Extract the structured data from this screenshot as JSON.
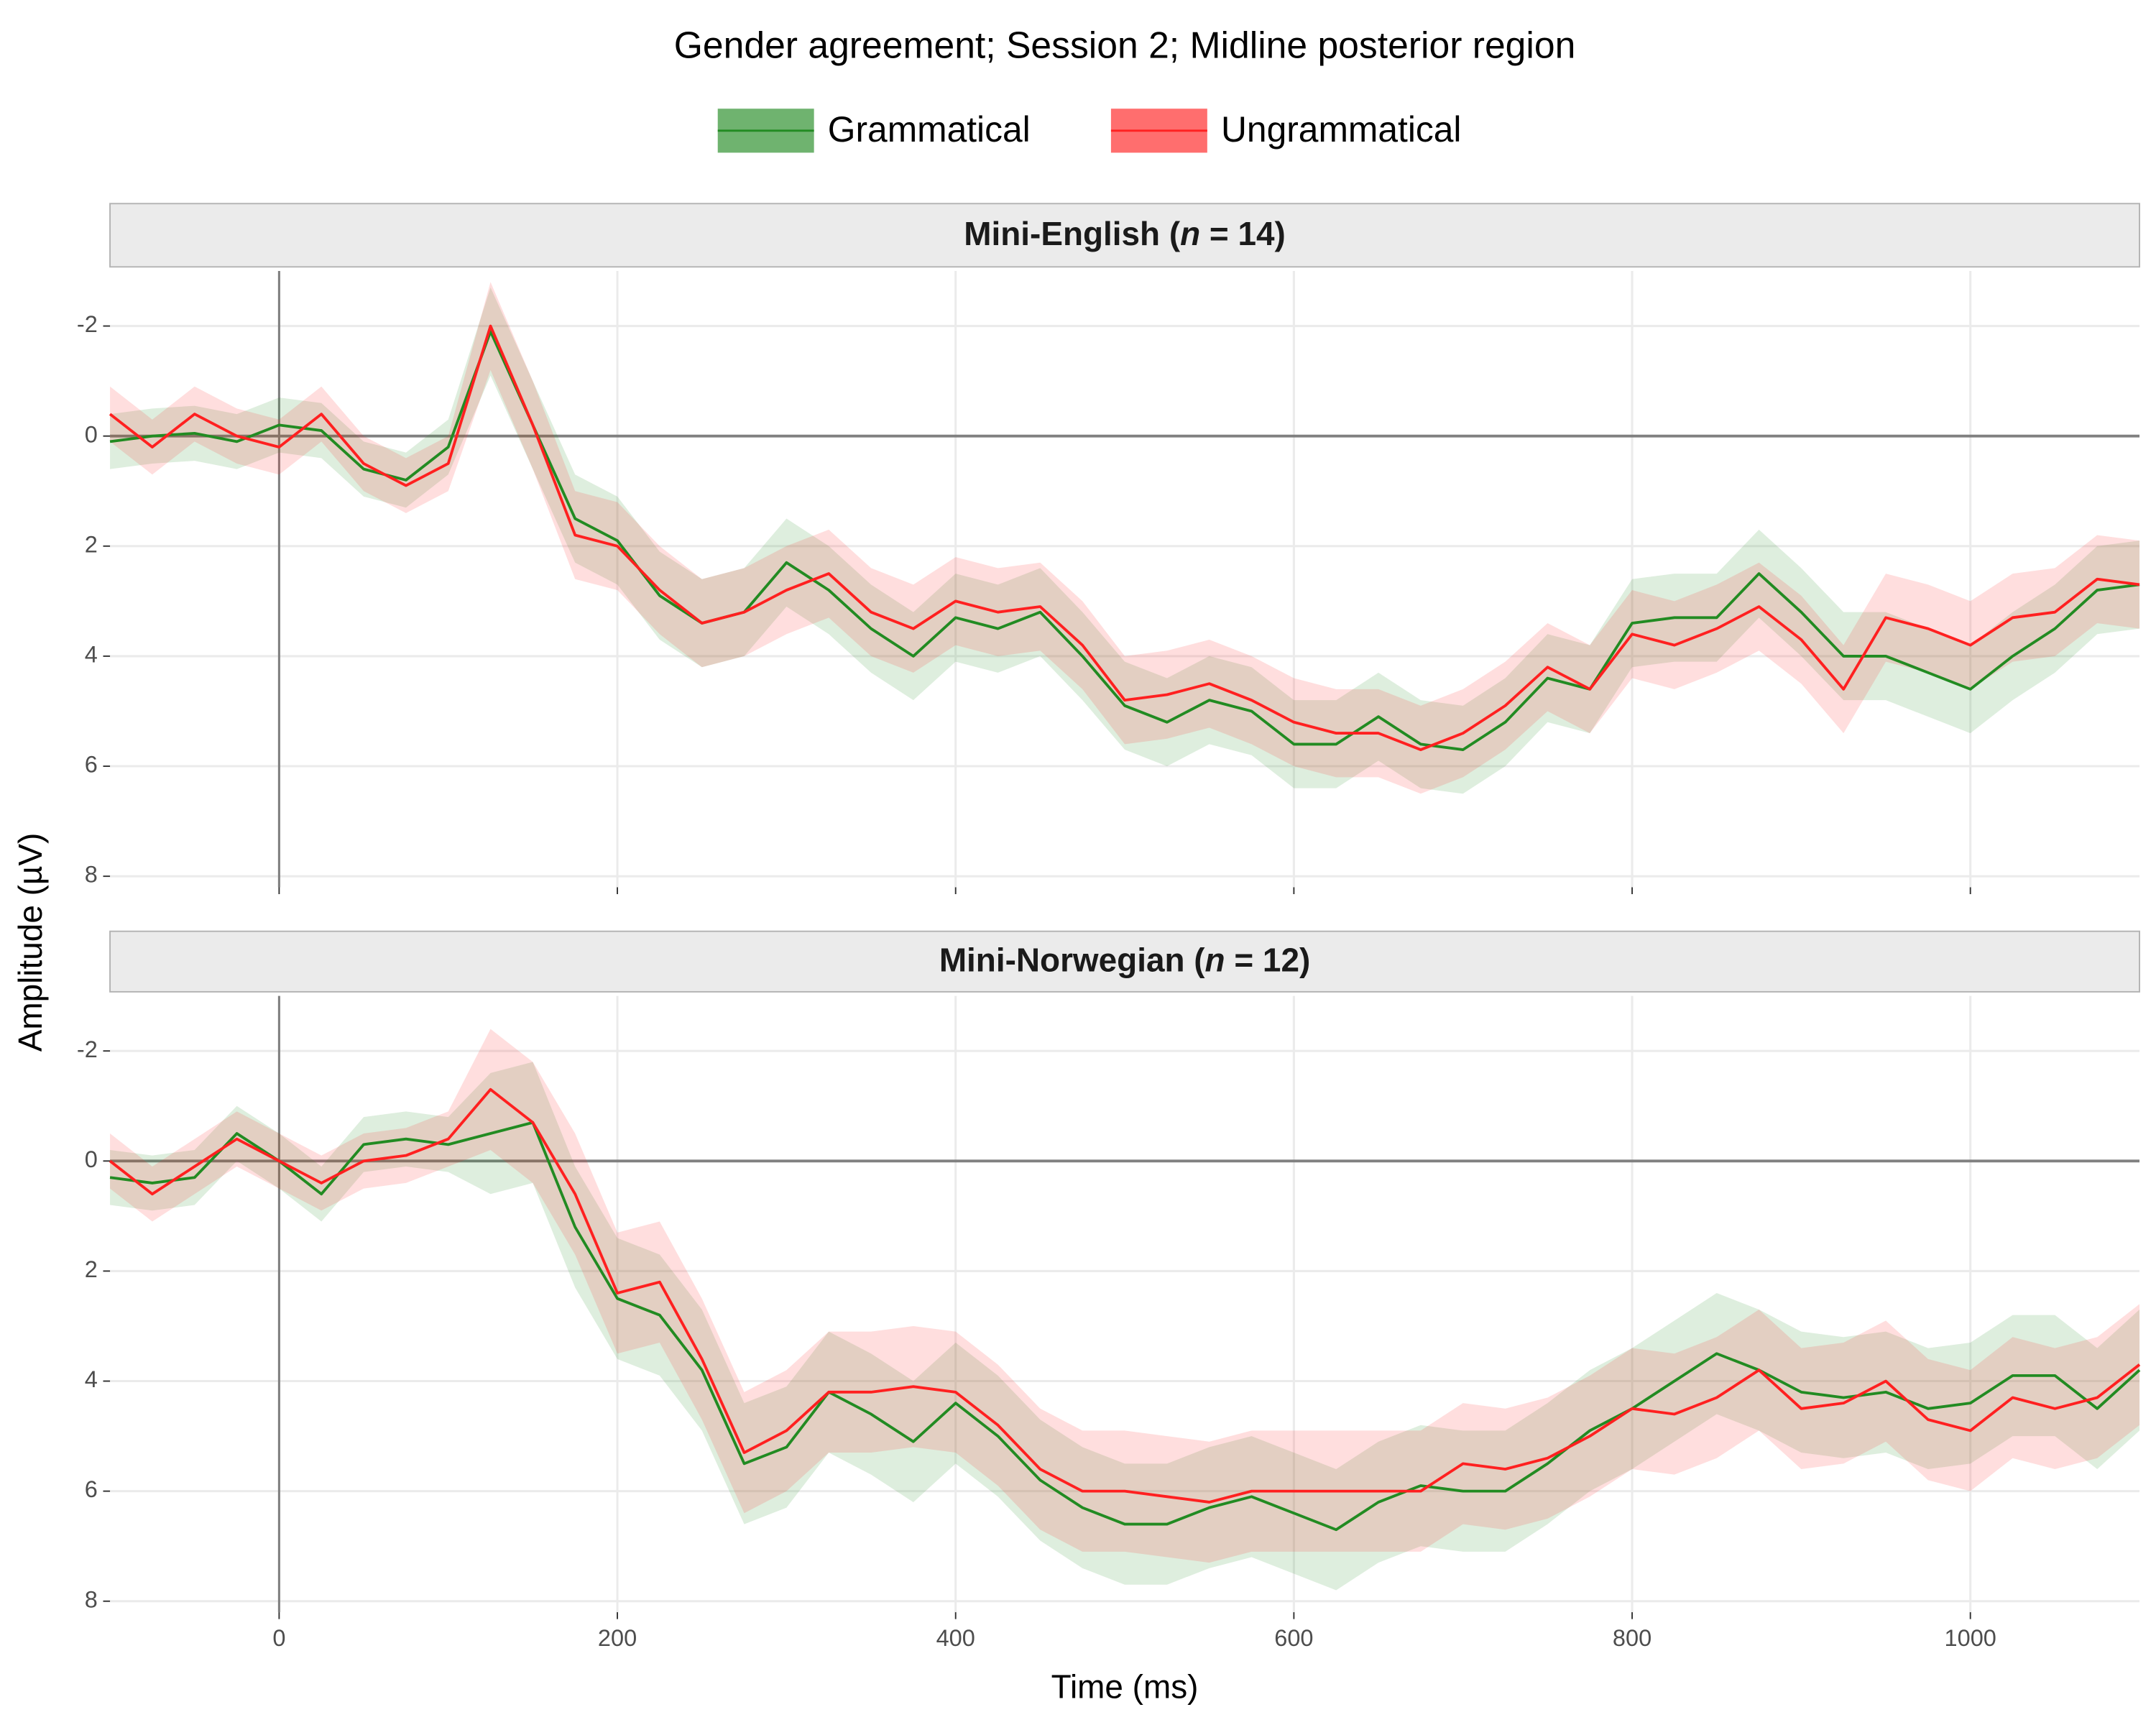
{
  "title": "Gender agreement; Session 2; Midline posterior region",
  "x_label": "Time (ms)",
  "y_label": "Amplitude (µV)",
  "legend": [
    {
      "name": "Grammatical",
      "color": "#228B22"
    },
    {
      "name": "Ungrammatical",
      "color": "#FF2020"
    }
  ],
  "chart_data": [
    {
      "type": "line_ribbon",
      "strip": "Mini-English (n = 14)",
      "xlim": [
        -100,
        1100
      ],
      "xticks": [
        0,
        200,
        400,
        600,
        800,
        1000
      ],
      "ylim": [
        -3,
        8.2
      ],
      "yticks": [
        -2,
        0,
        2,
        4,
        6,
        8
      ],
      "y_reversed": true,
      "grid": true,
      "hline": 0,
      "vline": 0,
      "x": [
        -100,
        -75,
        -50,
        -25,
        0,
        25,
        50,
        75,
        100,
        125,
        150,
        175,
        200,
        225,
        250,
        275,
        300,
        325,
        350,
        375,
        400,
        425,
        450,
        475,
        500,
        525,
        550,
        575,
        600,
        625,
        650,
        675,
        700,
        725,
        750,
        775,
        800,
        825,
        850,
        875,
        900,
        925,
        950,
        975,
        1000,
        1025,
        1050,
        1075,
        1100
      ],
      "series": [
        {
          "values": [
            0.1,
            0.0,
            -0.05,
            0.1,
            -0.2,
            -0.1,
            0.6,
            0.8,
            0.2,
            -1.9,
            -0.2,
            1.5,
            1.9,
            2.9,
            3.4,
            3.2,
            2.3,
            2.8,
            3.5,
            4.0,
            3.3,
            3.5,
            3.2,
            4.0,
            4.9,
            5.2,
            4.8,
            5.0,
            5.6,
            5.6,
            5.1,
            5.6,
            5.7,
            5.2,
            4.4,
            4.6,
            3.4,
            3.3,
            3.3,
            2.5,
            3.2,
            4.0,
            4.0,
            4.3,
            4.6,
            4.0,
            3.5,
            2.8,
            2.7
          ],
          "ci_low": [
            -0.4,
            -0.5,
            -0.55,
            -0.4,
            -0.7,
            -0.6,
            0.1,
            0.3,
            -0.3,
            -2.7,
            -1.0,
            0.7,
            1.1,
            2.1,
            2.6,
            2.4,
            1.5,
            2.0,
            2.7,
            3.2,
            2.5,
            2.7,
            2.4,
            3.2,
            4.1,
            4.4,
            4.0,
            4.2,
            4.8,
            4.8,
            4.3,
            4.8,
            4.9,
            4.4,
            3.6,
            3.8,
            2.6,
            2.5,
            2.5,
            1.7,
            2.4,
            3.2,
            3.2,
            3.5,
            3.8,
            3.2,
            2.7,
            2.0,
            1.9
          ],
          "ci_high": [
            0.6,
            0.5,
            0.45,
            0.6,
            0.3,
            0.4,
            1.1,
            1.3,
            0.7,
            -1.1,
            0.6,
            2.3,
            2.7,
            3.7,
            4.2,
            4.0,
            3.1,
            3.6,
            4.3,
            4.8,
            4.1,
            4.3,
            4.0,
            4.8,
            5.7,
            6.0,
            5.6,
            5.8,
            6.4,
            6.4,
            5.9,
            6.4,
            6.5,
            6.0,
            5.2,
            5.4,
            4.2,
            4.1,
            4.1,
            3.3,
            4.0,
            4.8,
            4.8,
            5.1,
            5.4,
            4.8,
            4.3,
            3.6,
            3.5
          ]
        },
        {
          "values": [
            -0.4,
            0.2,
            -0.4,
            0.0,
            0.2,
            -0.4,
            0.5,
            0.9,
            0.5,
            -2.0,
            -0.2,
            1.8,
            2.0,
            2.8,
            3.4,
            3.2,
            2.8,
            2.5,
            3.2,
            3.5,
            3.0,
            3.2,
            3.1,
            3.8,
            4.8,
            4.7,
            4.5,
            4.8,
            5.2,
            5.4,
            5.4,
            5.7,
            5.4,
            4.9,
            4.2,
            4.6,
            3.6,
            3.8,
            3.5,
            3.1,
            3.7,
            4.6,
            3.3,
            3.5,
            3.8,
            3.3,
            3.2,
            2.6,
            2.7
          ],
          "ci_low": [
            -0.9,
            -0.3,
            -0.9,
            -0.5,
            -0.3,
            -0.9,
            0.0,
            0.4,
            0.0,
            -2.8,
            -1.0,
            1.0,
            1.2,
            2.0,
            2.6,
            2.4,
            2.0,
            1.7,
            2.4,
            2.7,
            2.2,
            2.4,
            2.3,
            3.0,
            4.0,
            3.9,
            3.7,
            4.0,
            4.4,
            4.6,
            4.6,
            4.9,
            4.6,
            4.1,
            3.4,
            3.8,
            2.8,
            3.0,
            2.7,
            2.3,
            2.9,
            3.8,
            2.5,
            2.7,
            3.0,
            2.5,
            2.4,
            1.8,
            1.9
          ],
          "ci_high": [
            0.1,
            0.7,
            0.1,
            0.5,
            0.7,
            0.1,
            1.0,
            1.4,
            1.0,
            -1.2,
            0.6,
            2.6,
            2.8,
            3.6,
            4.2,
            4.0,
            3.6,
            3.3,
            4.0,
            4.3,
            3.8,
            4.0,
            3.9,
            4.6,
            5.6,
            5.5,
            5.3,
            5.6,
            6.0,
            6.2,
            6.2,
            6.5,
            6.2,
            5.7,
            5.0,
            5.4,
            4.4,
            4.6,
            4.3,
            3.9,
            4.5,
            5.4,
            4.1,
            4.3,
            4.6,
            4.1,
            4.0,
            3.4,
            3.5
          ]
        }
      ]
    },
    {
      "type": "line_ribbon",
      "strip": "Mini-Norwegian (n = 12)",
      "xlim": [
        -100,
        1100
      ],
      "xticks": [
        0,
        200,
        400,
        600,
        800,
        1000
      ],
      "ylim": [
        -3,
        8.2
      ],
      "yticks": [
        -2,
        0,
        2,
        4,
        6,
        8
      ],
      "y_reversed": true,
      "grid": true,
      "hline": 0,
      "vline": 0,
      "x": [
        -100,
        -75,
        -50,
        -25,
        0,
        25,
        50,
        75,
        100,
        125,
        150,
        175,
        200,
        225,
        250,
        275,
        300,
        325,
        350,
        375,
        400,
        425,
        450,
        475,
        500,
        525,
        550,
        575,
        600,
        625,
        650,
        675,
        700,
        725,
        750,
        775,
        800,
        825,
        850,
        875,
        900,
        925,
        950,
        975,
        1000,
        1025,
        1050,
        1075,
        1100
      ],
      "series": [
        {
          "values": [
            0.3,
            0.4,
            0.3,
            -0.5,
            0.0,
            0.6,
            -0.3,
            -0.4,
            -0.3,
            -0.5,
            -0.7,
            1.2,
            2.5,
            2.8,
            3.8,
            5.5,
            5.2,
            4.2,
            4.6,
            5.1,
            4.4,
            5.0,
            5.8,
            6.3,
            6.6,
            6.6,
            6.3,
            6.1,
            6.4,
            6.7,
            6.2,
            5.9,
            6.0,
            6.0,
            5.5,
            4.9,
            4.5,
            4.0,
            3.5,
            3.8,
            4.2,
            4.3,
            4.2,
            4.5,
            4.4,
            3.9,
            3.9,
            4.5,
            3.8
          ],
          "ci_low": [
            -0.2,
            -0.1,
            -0.2,
            -1.0,
            -0.5,
            0.1,
            -0.8,
            -0.9,
            -0.8,
            -1.6,
            -1.8,
            0.1,
            1.4,
            1.7,
            2.7,
            4.4,
            4.1,
            3.1,
            3.5,
            4.0,
            3.3,
            3.9,
            4.7,
            5.2,
            5.5,
            5.5,
            5.2,
            5.0,
            5.3,
            5.6,
            5.1,
            4.8,
            4.9,
            4.9,
            4.4,
            3.8,
            3.4,
            2.9,
            2.4,
            2.7,
            3.1,
            3.2,
            3.1,
            3.4,
            3.3,
            2.8,
            2.8,
            3.4,
            2.7
          ],
          "ci_high": [
            0.8,
            0.9,
            0.8,
            0.0,
            0.5,
            1.1,
            0.2,
            0.1,
            0.2,
            0.6,
            0.4,
            2.3,
            3.6,
            3.9,
            4.9,
            6.6,
            6.3,
            5.3,
            5.7,
            6.2,
            5.5,
            6.1,
            6.9,
            7.4,
            7.7,
            7.7,
            7.4,
            7.2,
            7.5,
            7.8,
            7.3,
            7.0,
            7.1,
            7.1,
            6.6,
            6.0,
            5.6,
            5.1,
            4.6,
            4.9,
            5.3,
            5.4,
            5.3,
            5.6,
            5.5,
            5.0,
            5.0,
            5.6,
            4.9
          ]
        },
        {
          "values": [
            0.0,
            0.6,
            0.1,
            -0.4,
            0.0,
            0.4,
            0.0,
            -0.1,
            -0.4,
            -1.3,
            -0.7,
            0.6,
            2.4,
            2.2,
            3.6,
            5.3,
            4.9,
            4.2,
            4.2,
            4.1,
            4.2,
            4.8,
            5.6,
            6.0,
            6.0,
            6.1,
            6.2,
            6.0,
            6.0,
            6.0,
            6.0,
            6.0,
            5.5,
            5.6,
            5.4,
            5.0,
            4.5,
            4.6,
            4.3,
            3.8,
            4.5,
            4.4,
            4.0,
            4.7,
            4.9,
            4.3,
            4.5,
            4.3,
            3.7
          ],
          "ci_low": [
            -0.5,
            0.1,
            -0.4,
            -0.9,
            -0.5,
            -0.1,
            -0.5,
            -0.6,
            -0.9,
            -2.4,
            -1.8,
            -0.5,
            1.3,
            1.1,
            2.5,
            4.2,
            3.8,
            3.1,
            3.1,
            3.0,
            3.1,
            3.7,
            4.5,
            4.9,
            4.9,
            5.0,
            5.1,
            4.9,
            4.9,
            4.9,
            4.9,
            4.9,
            4.4,
            4.5,
            4.3,
            3.9,
            3.4,
            3.5,
            3.2,
            2.7,
            3.4,
            3.3,
            2.9,
            3.6,
            3.8,
            3.2,
            3.4,
            3.2,
            2.6
          ],
          "ci_high": [
            0.5,
            1.1,
            0.6,
            0.1,
            0.5,
            0.9,
            0.5,
            0.4,
            0.1,
            -0.2,
            0.4,
            1.7,
            3.5,
            3.3,
            4.7,
            6.4,
            6.0,
            5.3,
            5.3,
            5.2,
            5.3,
            5.9,
            6.7,
            7.1,
            7.1,
            7.2,
            7.3,
            7.1,
            7.1,
            7.1,
            7.1,
            7.1,
            6.6,
            6.7,
            6.5,
            6.1,
            5.6,
            5.7,
            5.4,
            4.9,
            5.6,
            5.5,
            5.1,
            5.8,
            6.0,
            5.4,
            5.6,
            5.4,
            4.8
          ]
        }
      ]
    }
  ]
}
